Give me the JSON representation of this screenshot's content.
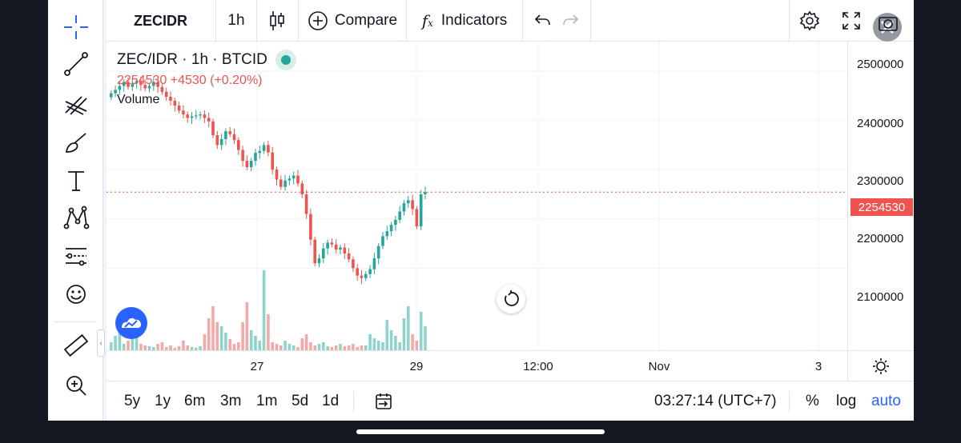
{
  "toolbar": {
    "symbol": "ZECIDR",
    "interval": "1h",
    "compare_label": "Compare",
    "indicators_label": "Indicators"
  },
  "legend": {
    "title": "ZEC/IDR · 1h · BTCID",
    "last": "2254530",
    "change": "+4530 (+0.20%)",
    "volume_label": "Volume"
  },
  "price_scale": {
    "ticks": [
      "2500000",
      "2400000",
      "2300000",
      "2200000",
      "2100000"
    ],
    "last_price_label": "2254530"
  },
  "time_scale": {
    "ticks": [
      "27",
      "29",
      "12:00",
      "Nov",
      "3"
    ]
  },
  "bottom_bar": {
    "ranges": [
      "5y",
      "1y",
      "6m",
      "3m",
      "1m",
      "5d",
      "1d"
    ],
    "clock": "03:27:14 (UTC+7)",
    "percent_label": "%",
    "log_label": "log",
    "auto_label": "auto"
  },
  "colors": {
    "up": "#26a69a",
    "down": "#ef5350",
    "up_volume": "#8fd3cb",
    "down_volume": "#f5a9a7",
    "accent": "#2962ff",
    "grid": "#f0f3fa"
  },
  "icons": {
    "left_toolbar": [
      "crosshair-icon",
      "trendline-icon",
      "fib-icon",
      "brush-icon",
      "text-icon",
      "pattern-icon",
      "prediction-icon",
      "emoji-icon",
      "ruler-icon",
      "zoom-in-icon"
    ]
  },
  "chart_data": {
    "type": "candlestick",
    "symbol": "ZEC/IDR",
    "interval": "1h",
    "ylim": [
      2000000,
      2560000
    ],
    "price_series": [
      2455000,
      2462000,
      2470000,
      2478000,
      2468000,
      2475000,
      2480000,
      2472000,
      2465000,
      2470000,
      2478000,
      2468000,
      2458000,
      2448000,
      2440000,
      2430000,
      2420000,
      2412000,
      2405000,
      2408000,
      2410000,
      2412000,
      2405000,
      2398000,
      2370000,
      2350000,
      2362000,
      2378000,
      2372000,
      2360000,
      2340000,
      2318000,
      2305000,
      2318000,
      2334000,
      2338000,
      2350000,
      2335000,
      2300000,
      2280000,
      2265000,
      2278000,
      2282000,
      2288000,
      2272000,
      2250000,
      2210000,
      2158000,
      2110000,
      2120000,
      2140000,
      2152000,
      2148000,
      2138000,
      2142000,
      2130000,
      2118000,
      2100000,
      2085000,
      2080000,
      2088000,
      2098000,
      2120000,
      2145000,
      2165000,
      2175000,
      2188000,
      2198000,
      2215000,
      2232000,
      2238000,
      2220000,
      2185000,
      2250000,
      2254530
    ],
    "volume_series": [
      10,
      18,
      25,
      8,
      12,
      45,
      30,
      8,
      6,
      5,
      4,
      8,
      10,
      4,
      6,
      3,
      5,
      12,
      6,
      4,
      3,
      5,
      20,
      40,
      55,
      35,
      30,
      22,
      14,
      8,
      10,
      35,
      60,
      25,
      18,
      12,
      100,
      45,
      10,
      8,
      6,
      12,
      8,
      6,
      4,
      15,
      20,
      10,
      6,
      8,
      10,
      5,
      4,
      6,
      8,
      5,
      6,
      8,
      4,
      6,
      6,
      20,
      15,
      12,
      10,
      38,
      25,
      18,
      10,
      40,
      55,
      20,
      12,
      48,
      30
    ]
  }
}
